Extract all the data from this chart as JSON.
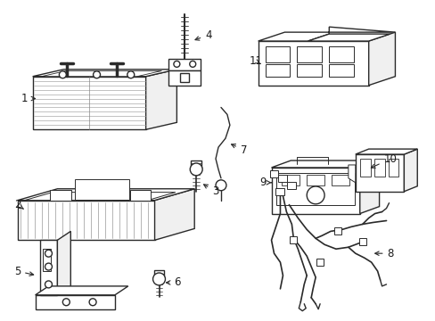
{
  "background_color": "#ffffff",
  "line_color": "#2a2a2a",
  "line_width": 1.0,
  "label_fontsize": 8.5,
  "label_color": "#1a1a1a",
  "fig_width": 4.89,
  "fig_height": 3.6,
  "dpi": 100
}
